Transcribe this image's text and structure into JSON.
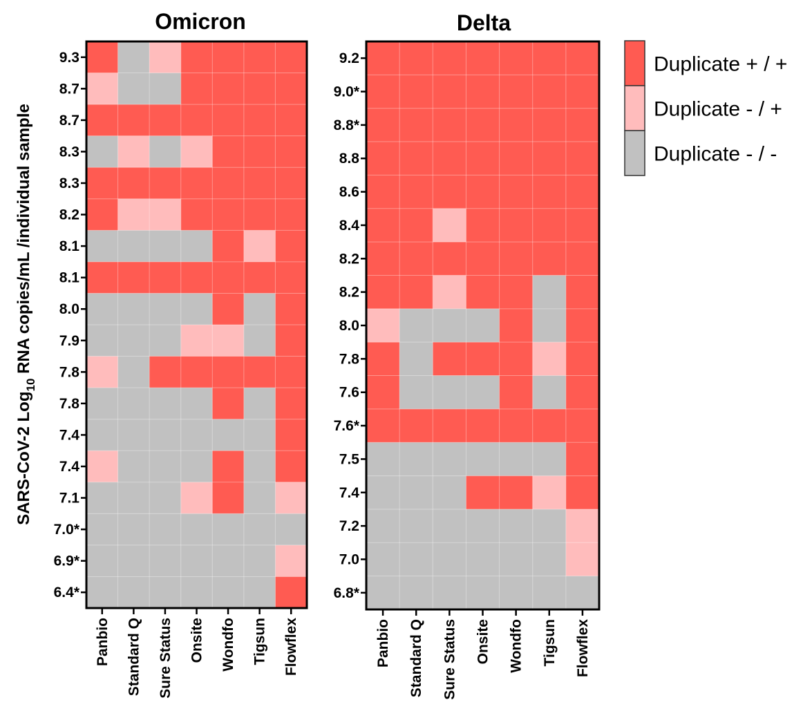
{
  "colors": {
    "pos_pos": "#ff5b52",
    "neg_pos": "#ffbcbc",
    "neg_neg": "#c1c1c1"
  },
  "y_axis_label": {
    "main": "SARS-CoV-2 Log",
    "sub": "10",
    "rest": " RNA copies/mL /individual sample"
  },
  "legend": [
    {
      "key": "pos_pos",
      "label": "Duplicate + / +"
    },
    {
      "key": "neg_pos",
      "label": "Duplicate - / +"
    },
    {
      "key": "neg_neg",
      "label": "Duplicate - / -"
    }
  ],
  "chart_data": [
    {
      "type": "heatmap",
      "title": "Omicron",
      "categories": [
        "Panbio",
        "Standard Q",
        "Sure Status",
        "Onsite",
        "Wondfo",
        "Tigsun",
        "Flowflex"
      ],
      "rows": [
        "9.3",
        "8.7",
        "8.7",
        "8.3",
        "8.3",
        "8.2",
        "8.1",
        "8.1",
        "8.0",
        "7.9",
        "7.8",
        "7.8",
        "7.4",
        "7.4",
        "7.1",
        "7.0*",
        "6.9*",
        "6.4*"
      ],
      "values": [
        [
          "pos_pos",
          "neg_neg",
          "neg_pos",
          "pos_pos",
          "pos_pos",
          "pos_pos",
          "pos_pos"
        ],
        [
          "neg_pos",
          "neg_neg",
          "neg_neg",
          "pos_pos",
          "pos_pos",
          "pos_pos",
          "pos_pos"
        ],
        [
          "pos_pos",
          "pos_pos",
          "pos_pos",
          "pos_pos",
          "pos_pos",
          "pos_pos",
          "pos_pos"
        ],
        [
          "neg_neg",
          "neg_pos",
          "neg_neg",
          "neg_pos",
          "pos_pos",
          "pos_pos",
          "pos_pos"
        ],
        [
          "pos_pos",
          "pos_pos",
          "pos_pos",
          "pos_pos",
          "pos_pos",
          "pos_pos",
          "pos_pos"
        ],
        [
          "pos_pos",
          "neg_pos",
          "neg_pos",
          "pos_pos",
          "pos_pos",
          "pos_pos",
          "pos_pos"
        ],
        [
          "neg_neg",
          "neg_neg",
          "neg_neg",
          "neg_neg",
          "pos_pos",
          "neg_pos",
          "pos_pos"
        ],
        [
          "pos_pos",
          "pos_pos",
          "pos_pos",
          "pos_pos",
          "pos_pos",
          "pos_pos",
          "pos_pos"
        ],
        [
          "neg_neg",
          "neg_neg",
          "neg_neg",
          "neg_neg",
          "pos_pos",
          "neg_neg",
          "pos_pos"
        ],
        [
          "neg_neg",
          "neg_neg",
          "neg_neg",
          "neg_pos",
          "neg_pos",
          "neg_neg",
          "pos_pos"
        ],
        [
          "neg_pos",
          "neg_neg",
          "pos_pos",
          "pos_pos",
          "pos_pos",
          "pos_pos",
          "pos_pos"
        ],
        [
          "neg_neg",
          "neg_neg",
          "neg_neg",
          "neg_neg",
          "pos_pos",
          "neg_neg",
          "pos_pos"
        ],
        [
          "neg_neg",
          "neg_neg",
          "neg_neg",
          "neg_neg",
          "neg_neg",
          "neg_neg",
          "pos_pos"
        ],
        [
          "neg_pos",
          "neg_neg",
          "neg_neg",
          "neg_neg",
          "pos_pos",
          "neg_neg",
          "pos_pos"
        ],
        [
          "neg_neg",
          "neg_neg",
          "neg_neg",
          "neg_pos",
          "pos_pos",
          "neg_neg",
          "neg_pos"
        ],
        [
          "neg_neg",
          "neg_neg",
          "neg_neg",
          "neg_neg",
          "neg_neg",
          "neg_neg",
          "neg_neg"
        ],
        [
          "neg_neg",
          "neg_neg",
          "neg_neg",
          "neg_neg",
          "neg_neg",
          "neg_neg",
          "neg_pos"
        ],
        [
          "neg_neg",
          "neg_neg",
          "neg_neg",
          "neg_neg",
          "neg_neg",
          "neg_neg",
          "pos_pos"
        ]
      ]
    },
    {
      "type": "heatmap",
      "title": "Delta",
      "categories": [
        "Panbio",
        "Standard Q",
        "Sure Status",
        "Onsite",
        "Wondfo",
        "Tigsun",
        "Flowflex"
      ],
      "rows": [
        "9.2",
        "9.0*",
        "8.8*",
        "8.8",
        "8.6",
        "8.4",
        "8.2",
        "8.2",
        "8.0",
        "7.8",
        "7.6",
        "7.6*",
        "7.5",
        "7.4",
        "7.2",
        "7.0",
        "6.8*"
      ],
      "values": [
        [
          "pos_pos",
          "pos_pos",
          "pos_pos",
          "pos_pos",
          "pos_pos",
          "pos_pos",
          "pos_pos"
        ],
        [
          "pos_pos",
          "pos_pos",
          "pos_pos",
          "pos_pos",
          "pos_pos",
          "pos_pos",
          "pos_pos"
        ],
        [
          "pos_pos",
          "pos_pos",
          "pos_pos",
          "pos_pos",
          "pos_pos",
          "pos_pos",
          "pos_pos"
        ],
        [
          "pos_pos",
          "pos_pos",
          "pos_pos",
          "pos_pos",
          "pos_pos",
          "pos_pos",
          "pos_pos"
        ],
        [
          "pos_pos",
          "pos_pos",
          "pos_pos",
          "pos_pos",
          "pos_pos",
          "pos_pos",
          "pos_pos"
        ],
        [
          "pos_pos",
          "pos_pos",
          "neg_pos",
          "pos_pos",
          "pos_pos",
          "pos_pos",
          "pos_pos"
        ],
        [
          "pos_pos",
          "pos_pos",
          "pos_pos",
          "pos_pos",
          "pos_pos",
          "pos_pos",
          "pos_pos"
        ],
        [
          "pos_pos",
          "pos_pos",
          "neg_pos",
          "pos_pos",
          "pos_pos",
          "neg_neg",
          "pos_pos"
        ],
        [
          "neg_pos",
          "neg_neg",
          "neg_neg",
          "neg_neg",
          "pos_pos",
          "neg_neg",
          "pos_pos"
        ],
        [
          "pos_pos",
          "neg_neg",
          "pos_pos",
          "pos_pos",
          "pos_pos",
          "neg_pos",
          "pos_pos"
        ],
        [
          "pos_pos",
          "neg_neg",
          "neg_neg",
          "neg_neg",
          "pos_pos",
          "neg_neg",
          "pos_pos"
        ],
        [
          "pos_pos",
          "pos_pos",
          "pos_pos",
          "pos_pos",
          "pos_pos",
          "pos_pos",
          "pos_pos"
        ],
        [
          "neg_neg",
          "neg_neg",
          "neg_neg",
          "neg_neg",
          "neg_neg",
          "neg_neg",
          "pos_pos"
        ],
        [
          "neg_neg",
          "neg_neg",
          "neg_neg",
          "pos_pos",
          "pos_pos",
          "neg_pos",
          "pos_pos"
        ],
        [
          "neg_neg",
          "neg_neg",
          "neg_neg",
          "neg_neg",
          "neg_neg",
          "neg_neg",
          "neg_pos"
        ],
        [
          "neg_neg",
          "neg_neg",
          "neg_neg",
          "neg_neg",
          "neg_neg",
          "neg_neg",
          "neg_pos"
        ],
        [
          "neg_neg",
          "neg_neg",
          "neg_neg",
          "neg_neg",
          "neg_neg",
          "neg_neg",
          "neg_neg"
        ]
      ]
    }
  ]
}
